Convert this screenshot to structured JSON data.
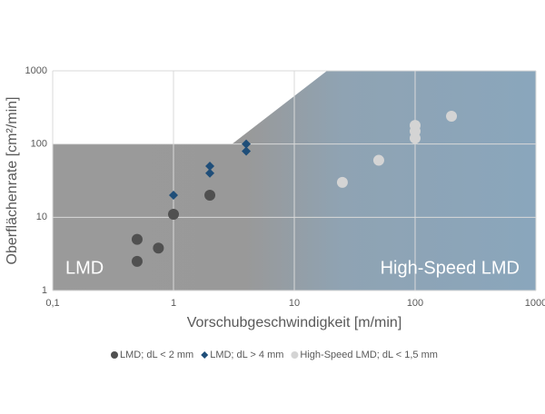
{
  "chart_data": {
    "type": "scatter",
    "xlabel": "Vorschubgeschwindigkeit [m/min]",
    "ylabel": "Oberflächenrate [cm²/min]",
    "xscale": "log",
    "yscale": "log",
    "grid": true,
    "legend": "bottom",
    "xlim": [
      0.1,
      1000
    ],
    "ylim": [
      1,
      1000
    ],
    "xticks": [
      {
        "value": 0.1,
        "label": "0,1"
      },
      1,
      10,
      100,
      1000
    ],
    "yticks": [
      1,
      10,
      100,
      1000
    ],
    "annotations": [
      "LMD",
      "High-Speed LMD"
    ],
    "series": [
      {
        "name": "LMD; dL < 2 mm",
        "color": "#505050",
        "marker": "circle",
        "x": [
          0.5,
          0.5,
          0.75,
          1,
          2
        ],
        "values": [
          5,
          2.5,
          3.8,
          11,
          20
        ]
      },
      {
        "name": "LMD; dL > 4 mm",
        "color": "#1f4e79",
        "marker": "diamond",
        "x": [
          1,
          2,
          2,
          4,
          4
        ],
        "values": [
          20,
          50,
          40,
          100,
          80
        ]
      },
      {
        "name": "High-Speed LMD; dL < 1,5 mm",
        "color": "#d4d4d4",
        "marker": "circle",
        "x": [
          25,
          50,
          100,
          100,
          100,
          200
        ],
        "values": [
          30,
          60,
          180,
          150,
          120,
          240
        ]
      }
    ]
  }
}
